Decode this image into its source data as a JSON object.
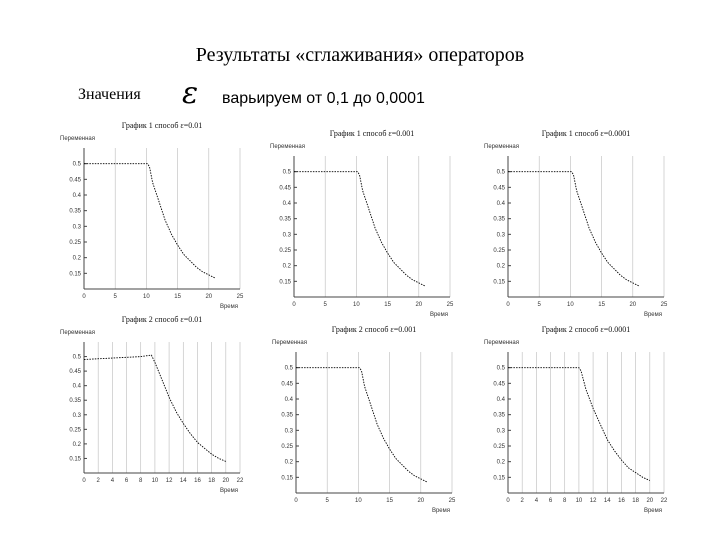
{
  "slide": {
    "title": "Результаты «сглаживания» операторов",
    "values_label": "Значения",
    "epsilon_symbol": "ε",
    "varying_text": "варьируем от 0,1 до 0,0001"
  },
  "chart_data": [
    {
      "type": "line",
      "title": "График 1 способ ε=0.01",
      "ylabel": "Переменная",
      "xlabel": "Время",
      "yticks": [
        "0.5",
        "0.45",
        "0.4",
        "0.35",
        "0.3",
        "0.25",
        "0.2",
        "0.15"
      ],
      "xticks": [
        "0",
        "5",
        "10",
        "15",
        "20",
        "25"
      ],
      "xlim": [
        0,
        25
      ],
      "ylim": [
        0.1,
        0.55
      ],
      "grid": true,
      "x": [
        0,
        10.2,
        10.5,
        11,
        12,
        13,
        14,
        15,
        16,
        17,
        18,
        19,
        20,
        21
      ],
      "y": [
        0.5,
        0.5,
        0.49,
        0.44,
        0.38,
        0.32,
        0.275,
        0.24,
        0.21,
        0.19,
        0.17,
        0.155,
        0.145,
        0.135
      ]
    },
    {
      "type": "line",
      "title": "График 1 способ ε=0.001",
      "ylabel": "Переменная",
      "xlabel": "Время",
      "yticks": [
        "0.5",
        "0.45",
        "0.4",
        "0.35",
        "0.3",
        "0.25",
        "0.2",
        "0.15"
      ],
      "xticks": [
        "0",
        "5",
        "10",
        "15",
        "20",
        "25"
      ],
      "xlim": [
        0,
        25
      ],
      "ylim": [
        0.1,
        0.55
      ],
      "grid": true,
      "x": [
        0,
        10.2,
        10.5,
        11,
        12,
        13,
        14,
        15,
        16,
        17,
        18,
        19,
        20,
        21
      ],
      "y": [
        0.5,
        0.5,
        0.49,
        0.44,
        0.38,
        0.32,
        0.275,
        0.24,
        0.21,
        0.19,
        0.17,
        0.155,
        0.145,
        0.135
      ]
    },
    {
      "type": "line",
      "title": "График 1 способ ε=0.0001",
      "ylabel": "Переменная",
      "xlabel": "Время",
      "yticks": [
        "0.5",
        "0.45",
        "0.4",
        "0.35",
        "0.3",
        "0.25",
        "0.2",
        "0.15"
      ],
      "xticks": [
        "0",
        "5",
        "10",
        "15",
        "20",
        "25"
      ],
      "xlim": [
        0,
        25
      ],
      "ylim": [
        0.1,
        0.55
      ],
      "grid": true,
      "x": [
        0,
        10.2,
        10.5,
        11,
        12,
        13,
        14,
        15,
        16,
        17,
        18,
        19,
        20,
        21
      ],
      "y": [
        0.5,
        0.5,
        0.49,
        0.44,
        0.38,
        0.32,
        0.275,
        0.24,
        0.21,
        0.19,
        0.17,
        0.155,
        0.145,
        0.135
      ]
    },
    {
      "type": "line",
      "title": "График 2 способ ε=0.01",
      "ylabel": "Переменная",
      "xlabel": "Время",
      "yticks": [
        "0.5",
        "0.45",
        "0.4",
        "0.35",
        "0.3",
        "0.25",
        "0.2",
        "0.15"
      ],
      "xticks": [
        "0",
        "2",
        "4",
        "6",
        "8",
        "10",
        "12",
        "14",
        "16",
        "18",
        "20",
        "22"
      ],
      "xlim": [
        0,
        22
      ],
      "ylim": [
        0.1,
        0.55
      ],
      "grid": true,
      "x": [
        0,
        8,
        9.5,
        10,
        11,
        12,
        13,
        14,
        15,
        16,
        17,
        18,
        19,
        20
      ],
      "y": [
        0.49,
        0.5,
        0.505,
        0.48,
        0.42,
        0.36,
        0.31,
        0.27,
        0.235,
        0.205,
        0.185,
        0.165,
        0.15,
        0.14
      ]
    },
    {
      "type": "line",
      "title": "График 2 способ ε=0.001",
      "ylabel": "Переменная",
      "xlabel": "Время",
      "yticks": [
        "0.5",
        "0.45",
        "0.4",
        "0.35",
        "0.3",
        "0.25",
        "0.2",
        "0.15"
      ],
      "xticks": [
        "0",
        "5",
        "10",
        "15",
        "20",
        "25"
      ],
      "xlim": [
        0,
        25
      ],
      "ylim": [
        0.1,
        0.55
      ],
      "grid": true,
      "x": [
        0,
        10.2,
        10.5,
        11,
        12,
        13,
        14,
        15,
        16,
        17,
        18,
        19,
        20,
        21
      ],
      "y": [
        0.5,
        0.5,
        0.49,
        0.44,
        0.38,
        0.32,
        0.275,
        0.24,
        0.21,
        0.19,
        0.17,
        0.155,
        0.145,
        0.135
      ]
    },
    {
      "type": "line",
      "title": "График 2 способ ε=0.0001",
      "ylabel": "Переменная",
      "xlabel": "Время",
      "yticks": [
        "0.5",
        "0.45",
        "0.4",
        "0.35",
        "0.3",
        "0.25",
        "0.2",
        "0.15"
      ],
      "xticks": [
        "0",
        "2",
        "4",
        "6",
        "8",
        "10",
        "12",
        "14",
        "16",
        "18",
        "20",
        "22"
      ],
      "xlim": [
        0,
        22
      ],
      "ylim": [
        0.1,
        0.55
      ],
      "grid": true,
      "x": [
        0,
        10,
        10.3,
        11,
        12,
        13,
        14,
        15,
        16,
        17,
        18,
        19,
        20
      ],
      "y": [
        0.5,
        0.5,
        0.49,
        0.43,
        0.37,
        0.32,
        0.27,
        0.235,
        0.205,
        0.18,
        0.165,
        0.15,
        0.14
      ]
    }
  ]
}
